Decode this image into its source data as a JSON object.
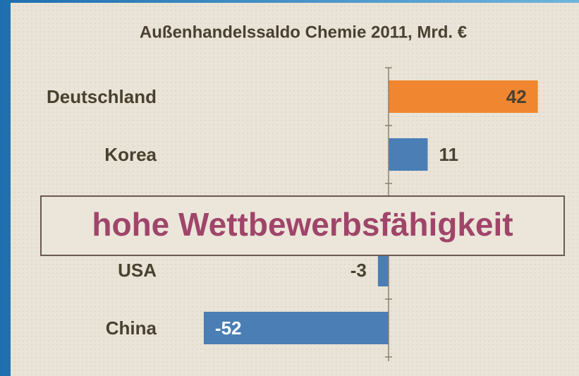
{
  "chart_data": {
    "type": "hbar",
    "title": "Außenhandelssaldo Chemie 2011, Mrd. €",
    "categories": [
      "Deutschland",
      "Korea",
      null,
      "USA",
      "China"
    ],
    "values": [
      42,
      11,
      null,
      -3,
      -52
    ],
    "colors": [
      "#f0862f",
      "#4a7eb5",
      "#4a7eb5",
      "#4a7eb5",
      "#4a7eb5"
    ],
    "xlim": [
      -60,
      60
    ],
    "annotation": "hohe Wettbewerbsfähigkeit"
  }
}
